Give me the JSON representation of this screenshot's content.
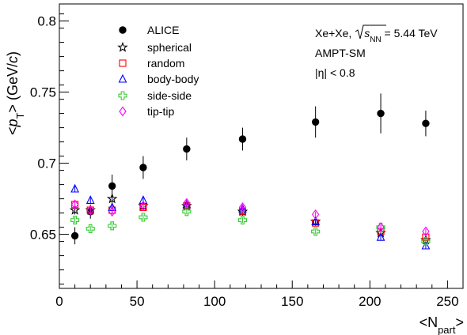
{
  "chart_data": {
    "type": "scatter",
    "xlabel": "<N",
    "xlabel_sub": "part",
    "xlabel_end": ">",
    "ylabel_pre": "<",
    "ylabel_p": "p",
    "ylabel_sub": "T",
    "ylabel_post": "> (GeV/",
    "ylabel_c": "c",
    "ylabel_end": ")",
    "xlim": [
      0,
      260
    ],
    "ylim": [
      0.612,
      0.812
    ],
    "x_ticks": [
      0,
      50,
      100,
      150,
      200,
      250
    ],
    "x_tick_labels": [
      "0",
      "50",
      "100",
      "150",
      "200",
      "250"
    ],
    "y_ticks": [
      0.65,
      0.7,
      0.75,
      0.8
    ],
    "y_tick_labels": [
      "0.65",
      "0.7",
      "0.75",
      "0.8"
    ],
    "annotations": {
      "line1_pre": "Xe+Xe, ",
      "line1_sqrt_s": "s",
      "line1_sqrt_sub": "NN",
      "line1_post": " = 5.44 TeV",
      "line2": "AMPT-SM",
      "line3": "|η| < 0.8"
    },
    "legend_position": "top-left",
    "series": [
      {
        "name": "ALICE",
        "marker": "filled-circle",
        "color": "#000000",
        "x": [
          10,
          20,
          34,
          54,
          82,
          118,
          165,
          207,
          236
        ],
        "y": [
          0.649,
          0.666,
          0.684,
          0.697,
          0.71,
          0.717,
          0.729,
          0.735,
          0.728
        ],
        "err": [
          0.006,
          0.005,
          0.008,
          0.008,
          0.008,
          0.008,
          0.011,
          0.014,
          0.009
        ]
      },
      {
        "name": "spherical",
        "marker": "open-star",
        "color": "#000000",
        "x": [
          10,
          20,
          34,
          54,
          82,
          118,
          165,
          207,
          236
        ],
        "y": [
          0.667,
          0.667,
          0.675,
          0.67,
          0.67,
          0.666,
          0.659,
          0.651,
          0.646
        ],
        "err": [
          0.003,
          0.003,
          0.003,
          0.003,
          0.003,
          0.003,
          0.003,
          0.003,
          0.003
        ]
      },
      {
        "name": "random",
        "marker": "open-square",
        "color": "#ff0000",
        "x": [
          10,
          20,
          34,
          54,
          82,
          118,
          165,
          207,
          236
        ],
        "y": [
          0.671,
          0.667,
          0.667,
          0.669,
          0.67,
          0.666,
          0.658,
          0.652,
          0.648
        ],
        "err": [
          0.002,
          0.002,
          0.002,
          0.002,
          0.002,
          0.002,
          0.002,
          0.002,
          0.002
        ]
      },
      {
        "name": "body-body",
        "marker": "open-triangle",
        "color": "#0000ff",
        "x": [
          10,
          20,
          34,
          54,
          82,
          118,
          165,
          207,
          236
        ],
        "y": [
          0.682,
          0.674,
          0.669,
          0.674,
          0.671,
          0.668,
          0.659,
          0.648,
          0.642
        ],
        "err": [
          0.002,
          0.002,
          0.002,
          0.002,
          0.002,
          0.002,
          0.002,
          0.002,
          0.002
        ]
      },
      {
        "name": "side-side",
        "marker": "open-cross",
        "color": "#33cc33",
        "x": [
          10,
          20,
          34,
          54,
          82,
          118,
          165,
          207,
          236
        ],
        "y": [
          0.66,
          0.654,
          0.656,
          0.662,
          0.666,
          0.66,
          0.652,
          0.655,
          0.645
        ],
        "err": [
          0.002,
          0.002,
          0.002,
          0.002,
          0.002,
          0.002,
          0.002,
          0.002,
          0.002
        ]
      },
      {
        "name": "tip-tip",
        "marker": "open-diamond",
        "color": "#ff00ff",
        "x": [
          10,
          20,
          34,
          54,
          82,
          118,
          165,
          207,
          236
        ],
        "y": [
          0.671,
          0.667,
          0.666,
          0.67,
          0.672,
          0.669,
          0.664,
          0.655,
          0.652
        ],
        "err": [
          0.002,
          0.002,
          0.002,
          0.002,
          0.002,
          0.002,
          0.002,
          0.002,
          0.002
        ]
      }
    ]
  }
}
